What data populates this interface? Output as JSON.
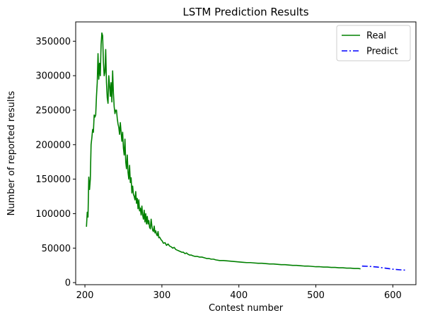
{
  "chart_data": {
    "type": "line",
    "title": "LSTM Prediction Results",
    "xlabel": "Contest number",
    "ylabel": "Number of  reported results",
    "xlim": [
      188,
      630
    ],
    "ylim": [
      -3000,
      378000
    ],
    "xticks": [
      200,
      300,
      400,
      500,
      600
    ],
    "yticks": [
      0,
      50000,
      100000,
      150000,
      200000,
      250000,
      300000,
      350000
    ],
    "grid": false,
    "legend_position": "top-right",
    "series": [
      {
        "name": "Real",
        "color": "#008000",
        "style": "solid",
        "x": [
          202,
          203,
          204,
          205,
          206,
          207,
          208,
          209,
          210,
          211,
          212,
          213,
          214,
          215,
          216,
          217,
          218,
          219,
          220,
          221,
          222,
          223,
          224,
          225,
          226,
          227,
          228,
          229,
          230,
          231,
          232,
          233,
          234,
          235,
          236,
          237,
          238,
          239,
          240,
          241,
          242,
          243,
          244,
          245,
          246,
          247,
          248,
          249,
          250,
          251,
          252,
          253,
          254,
          255,
          256,
          257,
          258,
          259,
          260,
          261,
          262,
          263,
          264,
          265,
          266,
          267,
          268,
          269,
          270,
          271,
          272,
          273,
          274,
          275,
          276,
          277,
          278,
          279,
          280,
          281,
          282,
          283,
          284,
          285,
          286,
          287,
          288,
          289,
          290,
          291,
          292,
          293,
          294,
          295,
          296,
          297,
          298,
          299,
          300,
          302,
          304,
          306,
          308,
          310,
          312,
          314,
          316,
          318,
          320,
          322,
          324,
          326,
          328,
          330,
          332,
          334,
          336,
          338,
          340,
          343,
          346,
          349,
          352,
          355,
          358,
          361,
          364,
          367,
          370,
          375,
          380,
          385,
          390,
          395,
          400,
          405,
          410,
          415,
          420,
          425,
          430,
          435,
          440,
          445,
          450,
          455,
          460,
          465,
          470,
          475,
          480,
          485,
          490,
          495,
          500,
          505,
          510,
          515,
          520,
          525,
          530,
          535,
          540,
          545,
          550,
          555,
          558
        ],
        "y": [
          81000,
          102000,
          95000,
          153000,
          135000,
          150000,
          200000,
          210000,
          222000,
          218000,
          243000,
          240000,
          243000,
          270000,
          290000,
          332000,
          295000,
          318000,
          300000,
          345000,
          362000,
          358000,
          320000,
          300000,
          305000,
          338000,
          290000,
          268000,
          260000,
          300000,
          286000,
          270000,
          290000,
          262000,
          307000,
          275000,
          255000,
          245000,
          250000,
          250000,
          238000,
          230000,
          225000,
          215000,
          232000,
          218000,
          205000,
          218000,
          195000,
          185000,
          208000,
          175000,
          165000,
          185000,
          160000,
          150000,
          170000,
          145000,
          152000,
          130000,
          140000,
          128000,
          125000,
          120000,
          132000,
          115000,
          122000,
          107000,
          120000,
          104000,
          108000,
          98000,
          111000,
          98000,
          92000,
          105000,
          88000,
          100000,
          85000,
          96000,
          85000,
          90000,
          80000,
          78000,
          92000,
          82000,
          76000,
          74000,
          82000,
          72000,
          75000,
          70000,
          68000,
          74000,
          65000,
          66000,
          64000,
          62000,
          61000,
          57000,
          58000,
          54000,
          56000,
          53000,
          52000,
          50000,
          51000,
          48000,
          47000,
          46000,
          45000,
          44000,
          44000,
          42000,
          43000,
          41000,
          40000,
          40000,
          39000,
          38000,
          38000,
          37000,
          37000,
          36000,
          35000,
          35000,
          34000,
          34000,
          33000,
          32000,
          32000,
          31500,
          31000,
          30500,
          30000,
          29500,
          29000,
          29000,
          28500,
          28000,
          28000,
          27500,
          27000,
          27000,
          26500,
          26000,
          26000,
          25500,
          25000,
          25000,
          24500,
          24000,
          24000,
          23500,
          23000,
          23000,
          22500,
          22500,
          22000,
          22000,
          21500,
          21500,
          21000,
          21000,
          20500,
          20500,
          20000
        ]
      },
      {
        "name": "Predict",
        "color": "#0000ff",
        "style": "dashdot",
        "x": [
          560,
          570,
          580,
          590,
          600,
          610,
          618
        ],
        "y": [
          24000,
          23500,
          22500,
          21000,
          19500,
          18500,
          18000
        ]
      }
    ]
  }
}
